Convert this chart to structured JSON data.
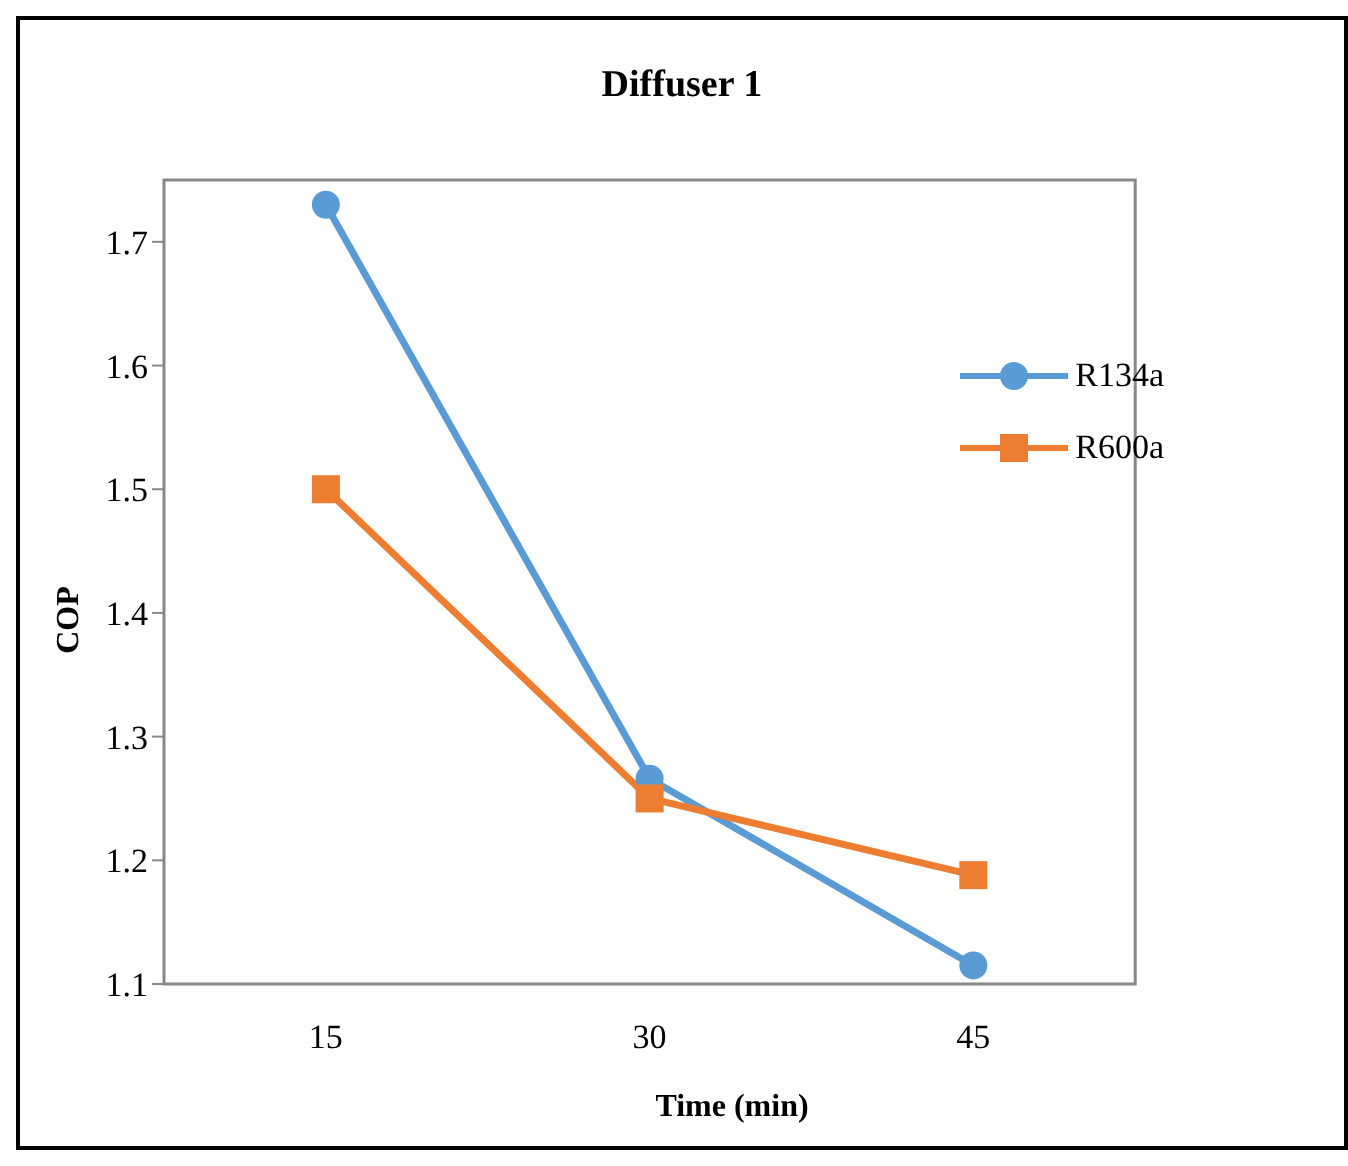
{
  "chart_data": {
    "type": "line",
    "title": "Diffuser 1",
    "xlabel": "Time (min)",
    "ylabel": "COP",
    "categories": [
      "15",
      "30",
      "45"
    ],
    "series": [
      {
        "name": "R134a",
        "color": "#5b9bd5",
        "marker": "circle",
        "values": [
          1.73,
          1.266,
          1.115
        ]
      },
      {
        "name": "R600a",
        "color": "#ed7d31",
        "marker": "square",
        "values": [
          1.5,
          1.25,
          1.188
        ]
      }
    ],
    "ylim": [
      1.1,
      1.75
    ],
    "yticks": [
      1.1,
      1.2,
      1.3,
      1.4,
      1.5,
      1.6,
      1.7
    ],
    "grid": false,
    "legend": "top right",
    "line_style": "solid"
  }
}
